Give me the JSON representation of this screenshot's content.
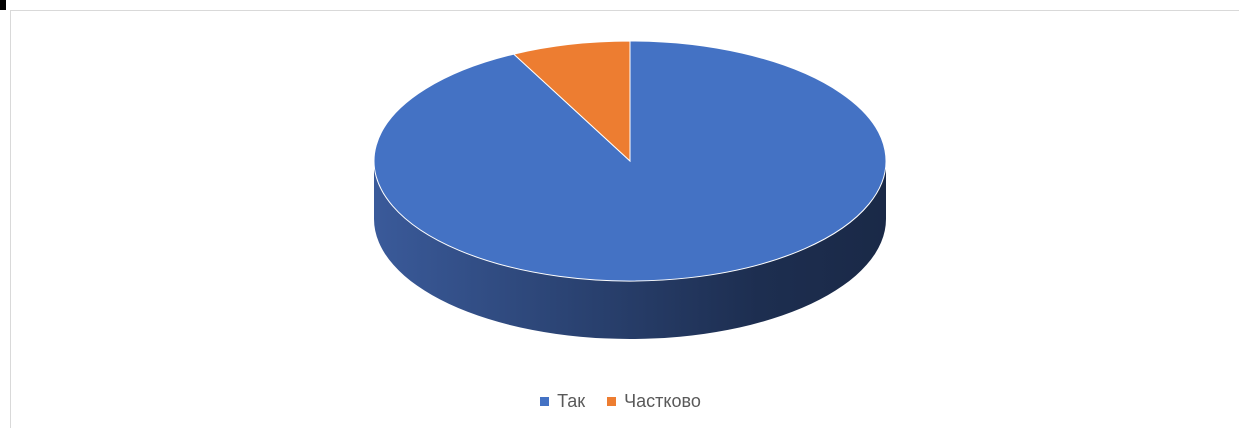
{
  "chart_data": {
    "type": "pie",
    "style": "3d",
    "categories": [
      "Так",
      "Частково"
    ],
    "values": [
      92.5,
      7.5
    ],
    "colors": [
      "#4472c4",
      "#ed7d31"
    ],
    "legend_position": "bottom"
  }
}
